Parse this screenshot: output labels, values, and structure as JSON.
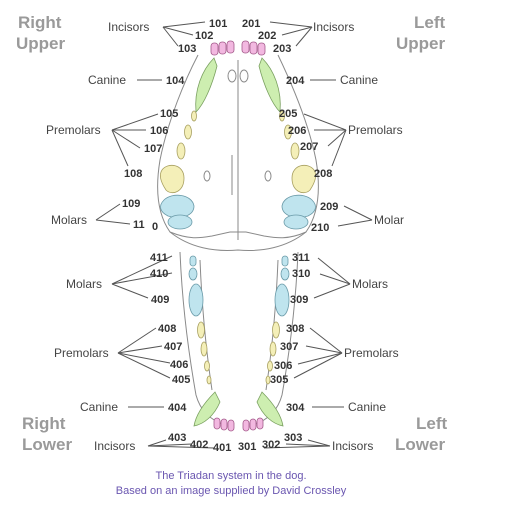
{
  "quadrants": {
    "right_upper": [
      "Right",
      "Upper"
    ],
    "left_upper": [
      "Left",
      "Upper"
    ],
    "right_lower": [
      "Right",
      "Lower"
    ],
    "left_lower": [
      "Left",
      "Lower"
    ]
  },
  "groups": {
    "incisors": "Incisors",
    "canine": "Canine",
    "premolars": "Premolars",
    "molars": "Molars",
    "molar": "Molar"
  },
  "teeth": {
    "upper_right": [
      "101",
      "102",
      "103",
      "104",
      "105",
      "106",
      "107",
      "108",
      "109",
      "11",
      "0"
    ],
    "upper_left": [
      "201",
      "202",
      "203",
      "204",
      "205",
      "206",
      "207",
      "208",
      "209",
      "210"
    ],
    "lower_left": [
      "301",
      "302",
      "303",
      "304",
      "305",
      "306",
      "307",
      "308",
      "309",
      "310",
      "311"
    ],
    "lower_right": [
      "401",
      "402",
      "403",
      "404",
      "405",
      "406",
      "407",
      "408",
      "409",
      "410",
      "411"
    ]
  },
  "caption": [
    "The Triadan system in the dog.",
    "Based on an image supplied by David Crossley"
  ],
  "colors": {
    "incisor": "#f2b8e0",
    "canine": "#cdeeb0",
    "premolar": "#f4efb8",
    "molar": "#bfe4ee",
    "label_gray": "#9a9a9a",
    "caption": "#6a56b0"
  }
}
